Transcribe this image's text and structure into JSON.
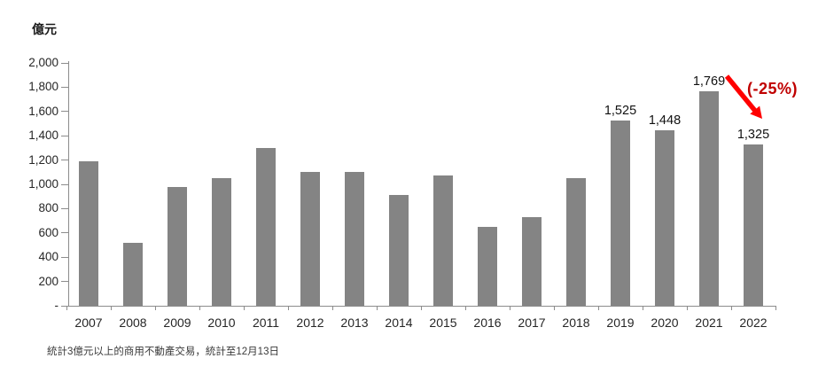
{
  "colors": {
    "bar": "#848484",
    "axis": "#8c8c8c",
    "label": "#262626"
  },
  "footnote": "統計3億元以上的商用不動產交易，統計至12月13日",
  "chart_data": {
    "type": "bar",
    "title": "",
    "ylabel": "億元",
    "xlabel": "",
    "ylim": [
      0,
      2000
    ],
    "ytick_step": 200,
    "ytick_labels": [
      "-",
      "200",
      "400",
      "600",
      "800",
      "1,000",
      "1,200",
      "1,400",
      "1,600",
      "1,800",
      "2,000"
    ],
    "grid": false,
    "legend": false,
    "categories": [
      "2007",
      "2008",
      "2009",
      "2010",
      "2011",
      "2012",
      "2013",
      "2014",
      "2015",
      "2016",
      "2017",
      "2018",
      "2019",
      "2020",
      "2021",
      "2022"
    ],
    "values": [
      1190,
      520,
      975,
      1050,
      1300,
      1105,
      1100,
      915,
      1070,
      650,
      730,
      1050,
      1525,
      1448,
      1769,
      1325
    ],
    "data_labels": {
      "2019": "1,525",
      "2020": "1,448",
      "2021": "1,769",
      "2022": "1,325"
    },
    "annotation": {
      "text": "(-25%)",
      "text_color": "#c00000",
      "arrow_color": "#ff0000",
      "arrow": "from 2021 bar label down to 2022 bar top"
    }
  }
}
